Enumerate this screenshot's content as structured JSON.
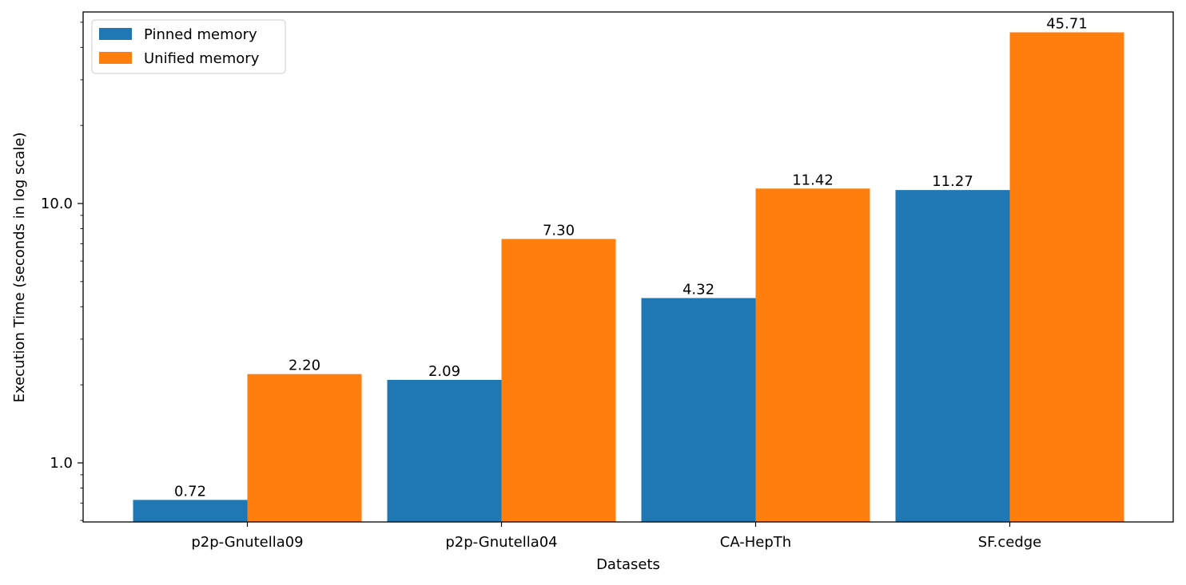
{
  "chart_data": {
    "type": "bar",
    "scale": "log",
    "categories": [
      "p2p-Gnutella09",
      "p2p-Gnutella04",
      "CA-HepTh",
      "SF.cedge"
    ],
    "series": [
      {
        "name": "Pinned memory",
        "color": "#1f77b4",
        "values": [
          0.72,
          2.09,
          4.32,
          11.27
        ],
        "labels": [
          "0.72",
          "2.09",
          "4.32",
          "11.27"
        ]
      },
      {
        "name": "Unified memory",
        "color": "#ff7f0e",
        "values": [
          2.2,
          7.3,
          11.42,
          45.71
        ],
        "labels": [
          "2.20",
          "7.30",
          "11.42",
          "45.71"
        ]
      }
    ],
    "xlabel": "Datasets",
    "ylabel": "Execution Time (seconds in log scale)",
    "ylim": [
      0.59,
      60
    ],
    "major_ticks": [
      1.0,
      10.0
    ],
    "major_tick_labels": [
      "1.0",
      "10.0"
    ],
    "legend_position": "upper-left"
  }
}
